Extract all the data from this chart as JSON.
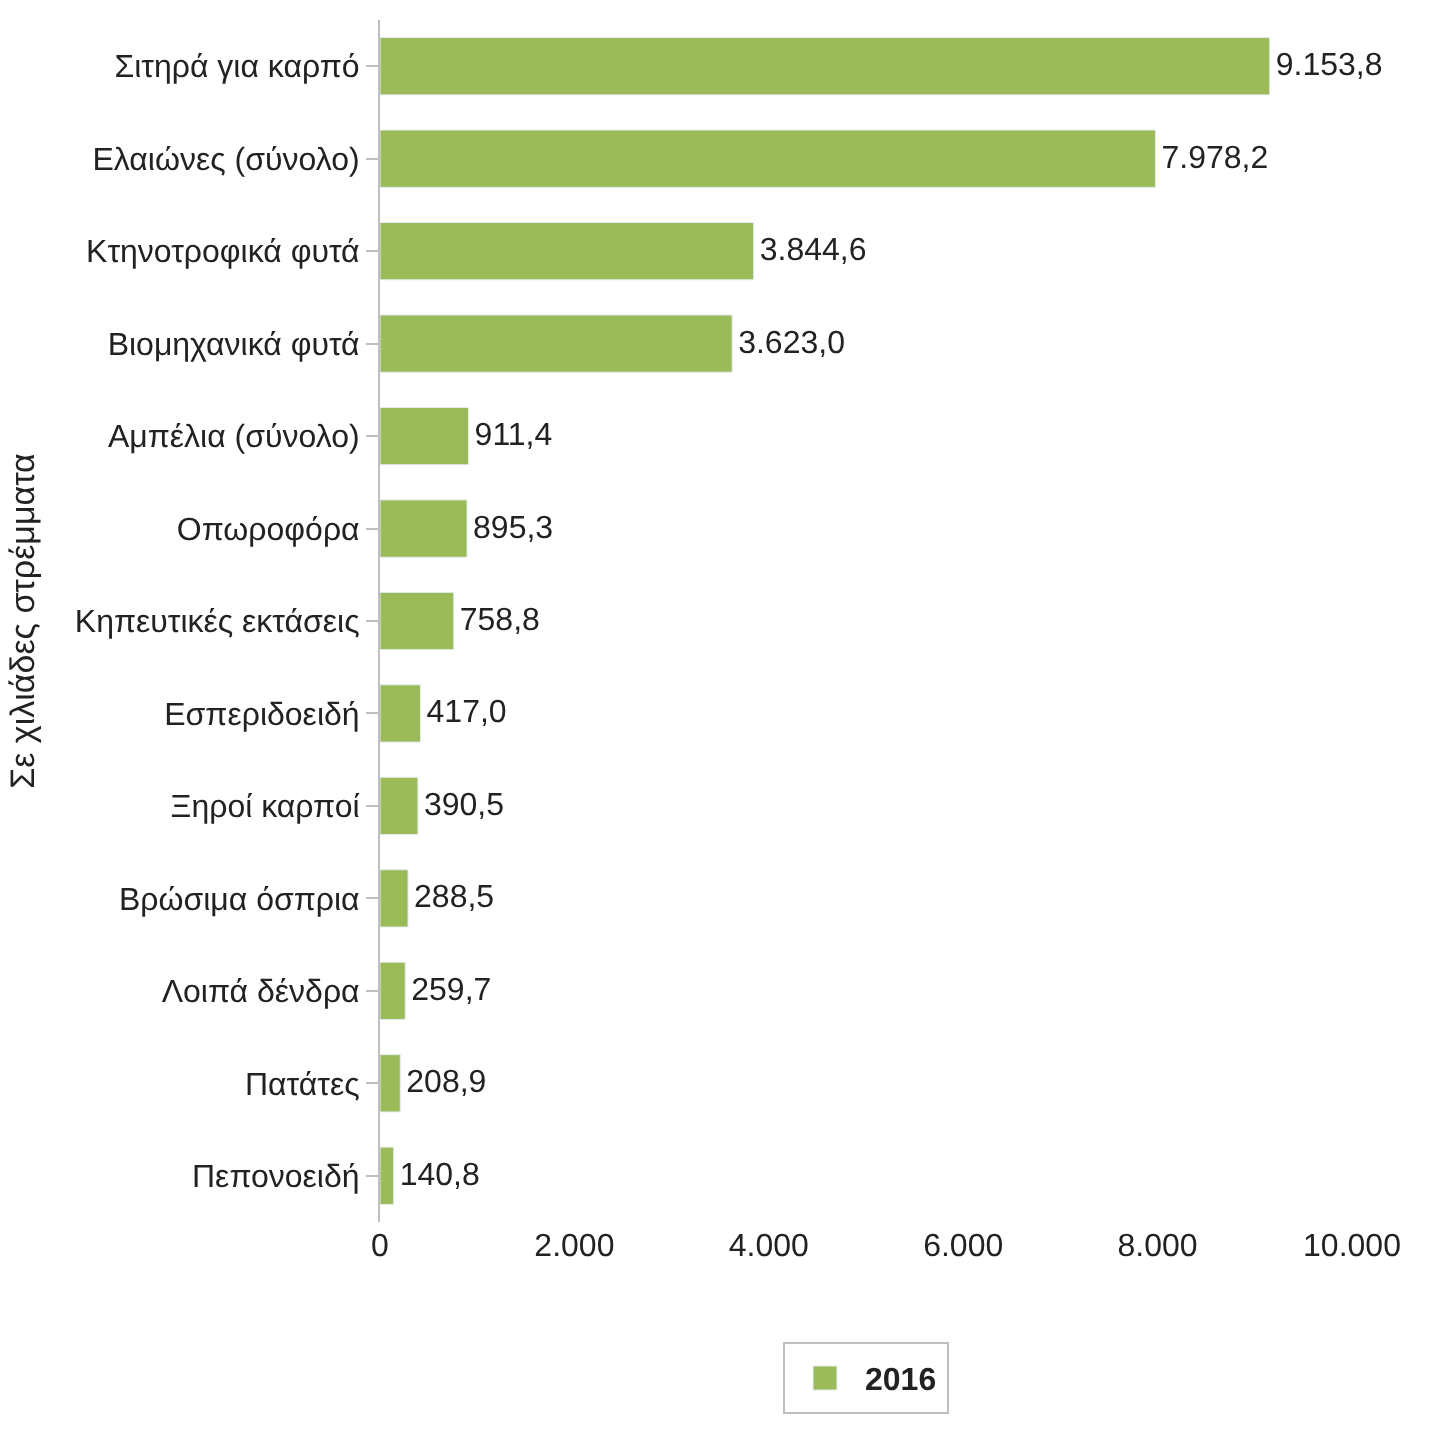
{
  "chart_data": {
    "type": "bar",
    "orientation": "horizontal",
    "ylabel": "Σε χιλιάδες στρέμματα",
    "categories": [
      "Σιτηρά για καρπό",
      "Ελαιώνες (σύνολο)",
      "Κτηνοτροφικά φυτά",
      "Βιομηχανικά φυτά",
      "Αμπέλια (σύνολο)",
      "Οπωροφόρα",
      "Κηπευτικές εκτάσεις",
      "Εσπεριδοειδή",
      "Ξηροί καρποί",
      "Βρώσιμα όσπρια",
      "Λοιπά δένδρα",
      "Πατάτες",
      "Πεπονοειδή"
    ],
    "series": [
      {
        "name": "2016",
        "color": "#9bbb59",
        "values": [
          9153.8,
          7978.2,
          3844.6,
          3623.0,
          911.4,
          895.3,
          758.8,
          417.0,
          390.5,
          288.5,
          259.7,
          208.9,
          140.8
        ],
        "value_labels": [
          "9.153,8",
          "7.978,2",
          "3.844,6",
          "3.623,0",
          "911,4",
          "895,3",
          "758,8",
          "417,0",
          "390,5",
          "288,5",
          "259,7",
          "208,9",
          "140,8"
        ]
      }
    ],
    "xlim": [
      0,
      10000
    ],
    "xticks": [
      0,
      {
        "value": 2000,
        "label": "2.000"
      },
      {
        "value": 4000,
        "label": "4.000"
      },
      {
        "value": 6000,
        "label": "6.000"
      },
      {
        "value": 8000,
        "label": "8.000"
      },
      {
        "value": 10000,
        "label": "10.000"
      }
    ],
    "legend": "bottom"
  }
}
